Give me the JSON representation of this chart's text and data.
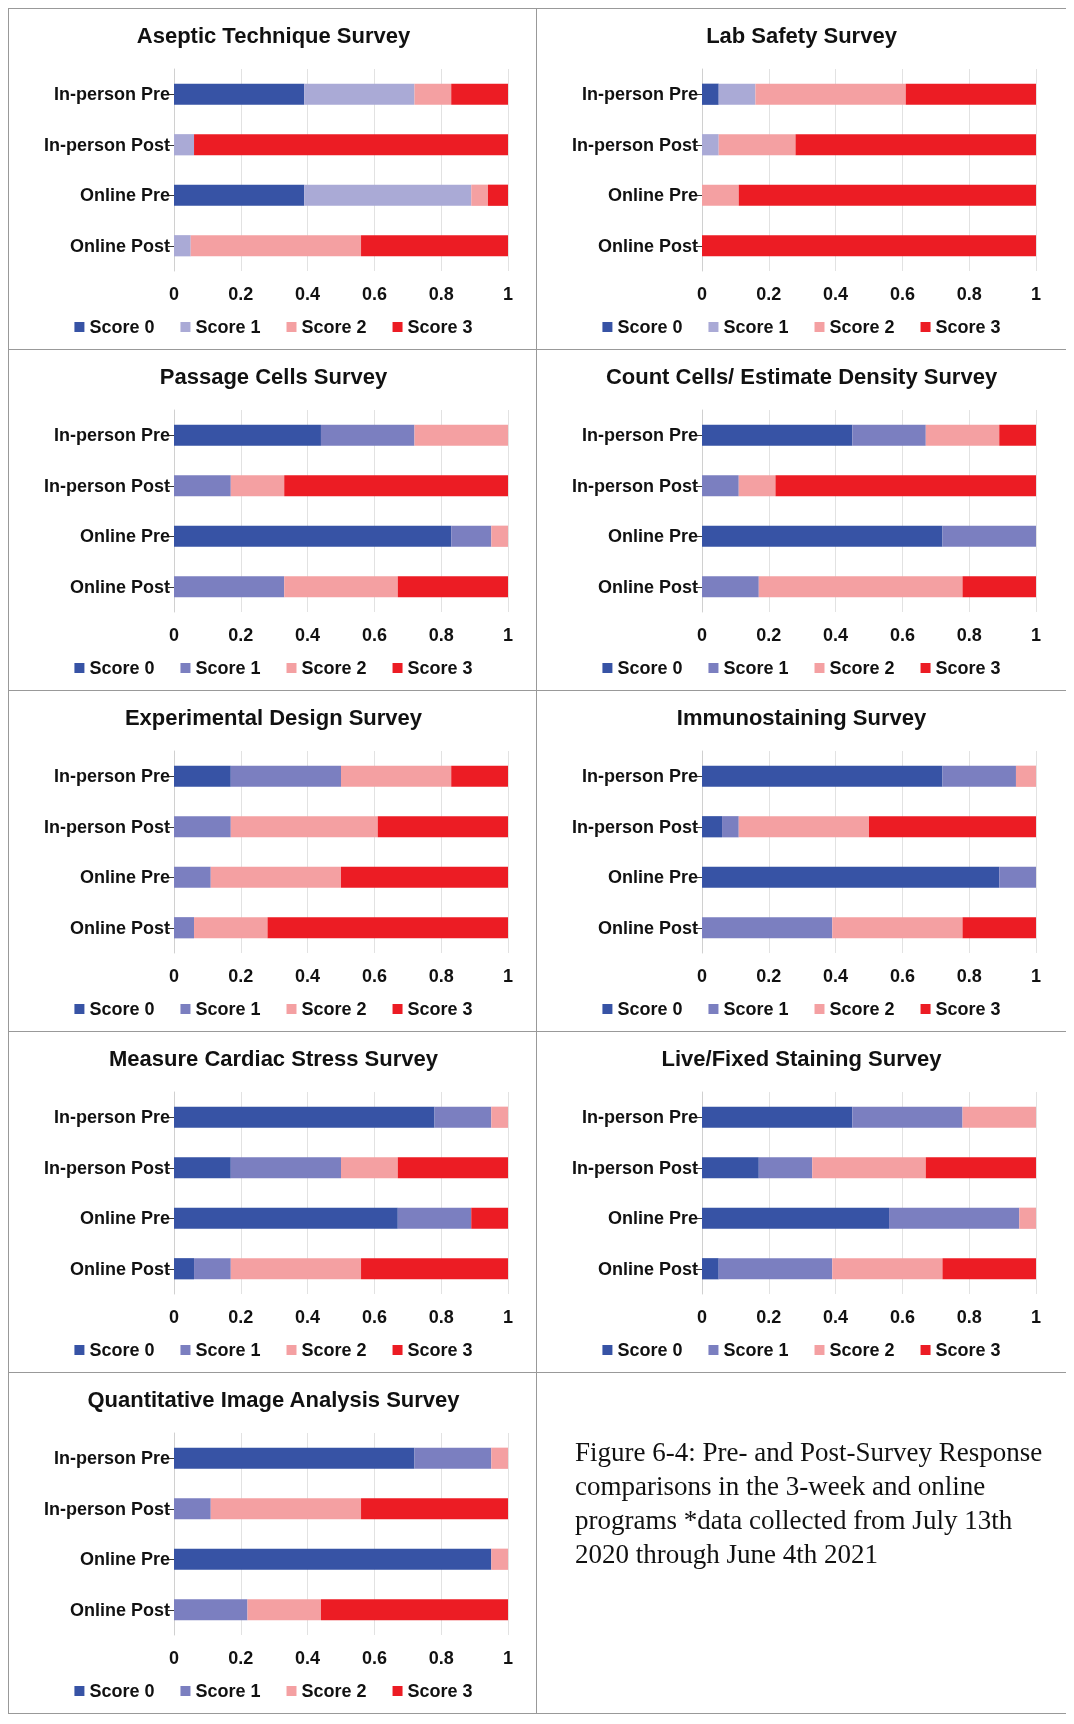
{
  "chart_data": [
    {
      "type": "bar",
      "title": "Aseptic Technique Survey",
      "orientation": "horizontal",
      "stacked": true,
      "categories": [
        "In-person Pre",
        "In-person Post",
        "Online Pre",
        "Online Post"
      ],
      "xlim": [
        0,
        1
      ],
      "xticks": [
        0,
        0.2,
        0.4,
        0.6,
        0.8,
        1
      ],
      "grid": "x",
      "legend": "bottom",
      "series": [
        {
          "name": "Score 0",
          "color": "#3753a5",
          "values": [
            0.39,
            0,
            0.39,
            0
          ]
        },
        {
          "name": "Score 1",
          "color": "#aaaad6",
          "values": [
            0.33,
            0.06,
            0.5,
            0.05
          ]
        },
        {
          "name": "Score 2",
          "color": "#f4a0a2",
          "values": [
            0.11,
            0,
            0.05,
            0.51
          ]
        },
        {
          "name": "Score 3",
          "color": "#ec1c24",
          "values": [
            0.17,
            0.94,
            0.06,
            0.44
          ]
        }
      ]
    },
    {
      "type": "bar",
      "title": "Lab Safety Survey",
      "orientation": "horizontal",
      "stacked": true,
      "categories": [
        "In-person Pre",
        "In-person Post",
        "Online Pre",
        "Online Post"
      ],
      "xlim": [
        0,
        1
      ],
      "xticks": [
        0,
        0.2,
        0.4,
        0.6,
        0.8,
        1
      ],
      "grid": "x",
      "legend": "bottom",
      "series": [
        {
          "name": "Score 0",
          "color": "#3753a5",
          "values": [
            0.05,
            0,
            0,
            0
          ]
        },
        {
          "name": "Score 1",
          "color": "#aaaad6",
          "values": [
            0.11,
            0.05,
            0,
            0
          ]
        },
        {
          "name": "Score 2",
          "color": "#f4a0a2",
          "values": [
            0.45,
            0.23,
            0.11,
            0
          ]
        },
        {
          "name": "Score 3",
          "color": "#ec1c24",
          "values": [
            0.39,
            0.72,
            0.89,
            1
          ]
        }
      ]
    },
    {
      "type": "bar",
      "title": "Passage Cells Survey",
      "orientation": "horizontal",
      "stacked": true,
      "categories": [
        "In-person Pre",
        "In-person Post",
        "Online Pre",
        "Online Post"
      ],
      "xlim": [
        0,
        1
      ],
      "xticks": [
        0,
        0.2,
        0.4,
        0.6,
        0.8,
        1
      ],
      "grid": "x",
      "legend": "bottom",
      "series": [
        {
          "name": "Score 0",
          "color": "#3753a5",
          "values": [
            0.44,
            0,
            0.83,
            0
          ]
        },
        {
          "name": "Score 1",
          "color": "#7b7fc0",
          "values": [
            0.28,
            0.17,
            0.12,
            0.33
          ]
        },
        {
          "name": "Score 2",
          "color": "#f4a0a2",
          "values": [
            0.28,
            0.16,
            0.05,
            0.34
          ]
        },
        {
          "name": "Score 3",
          "color": "#ec1c24",
          "values": [
            0,
            0.67,
            0,
            0.33
          ]
        }
      ]
    },
    {
      "type": "bar",
      "title": "Count Cells/ Estimate Density Survey",
      "orientation": "horizontal",
      "stacked": true,
      "categories": [
        "In-person Pre",
        "In-person Post",
        "Online Pre",
        "Online Post"
      ],
      "xlim": [
        0,
        1
      ],
      "xticks": [
        0,
        0.2,
        0.4,
        0.6,
        0.8,
        1
      ],
      "grid": "x",
      "legend": "bottom",
      "series": [
        {
          "name": "Score 0",
          "color": "#3753a5",
          "values": [
            0.45,
            0,
            0.72,
            0
          ]
        },
        {
          "name": "Score 1",
          "color": "#7b7fc0",
          "values": [
            0.22,
            0.11,
            0.28,
            0.17
          ]
        },
        {
          "name": "Score 2",
          "color": "#f4a0a2",
          "values": [
            0.22,
            0.11,
            0,
            0.61
          ]
        },
        {
          "name": "Score 3",
          "color": "#ec1c24",
          "values": [
            0.11,
            0.78,
            0,
            0.22
          ]
        }
      ]
    },
    {
      "type": "bar",
      "title": "Experimental Design Survey",
      "orientation": "horizontal",
      "stacked": true,
      "categories": [
        "In-person Pre",
        "In-person Post",
        "Online Pre",
        "Online Post"
      ],
      "xlim": [
        0,
        1
      ],
      "xticks": [
        0,
        0.2,
        0.4,
        0.6,
        0.8,
        1
      ],
      "grid": "x",
      "legend": "bottom",
      "series": [
        {
          "name": "Score 0",
          "color": "#3753a5",
          "values": [
            0.17,
            0,
            0,
            0
          ]
        },
        {
          "name": "Score 1",
          "color": "#7b7fc0",
          "values": [
            0.33,
            0.17,
            0.11,
            0.06
          ]
        },
        {
          "name": "Score 2",
          "color": "#f4a0a2",
          "values": [
            0.33,
            0.44,
            0.39,
            0.22
          ]
        },
        {
          "name": "Score 3",
          "color": "#ec1c24",
          "values": [
            0.17,
            0.39,
            0.5,
            0.72
          ]
        }
      ]
    },
    {
      "type": "bar",
      "title": "Immunostaining Survey",
      "orientation": "horizontal",
      "stacked": true,
      "categories": [
        "In-person Pre",
        "In-person Post",
        "Online Pre",
        "Online Post"
      ],
      "xlim": [
        0,
        1
      ],
      "xticks": [
        0,
        0.2,
        0.4,
        0.6,
        0.8,
        1
      ],
      "grid": "x",
      "legend": "bottom",
      "series": [
        {
          "name": "Score 0",
          "color": "#3753a5",
          "values": [
            0.72,
            0.06,
            0.89,
            0
          ]
        },
        {
          "name": "Score 1",
          "color": "#7b7fc0",
          "values": [
            0.22,
            0.05,
            0.11,
            0.39
          ]
        },
        {
          "name": "Score 2",
          "color": "#f4a0a2",
          "values": [
            0.06,
            0.39,
            0,
            0.39
          ]
        },
        {
          "name": "Score 3",
          "color": "#ec1c24",
          "values": [
            0,
            0.5,
            0,
            0.22
          ]
        }
      ]
    },
    {
      "type": "bar",
      "title": "Measure Cardiac Stress Survey",
      "orientation": "horizontal",
      "stacked": true,
      "categories": [
        "In-person Pre",
        "In-person Post",
        "Online Pre",
        "Online Post"
      ],
      "xlim": [
        0,
        1
      ],
      "xticks": [
        0,
        0.2,
        0.4,
        0.6,
        0.8,
        1
      ],
      "grid": "x",
      "legend": "bottom",
      "series": [
        {
          "name": "Score 0",
          "color": "#3753a5",
          "values": [
            0.78,
            0.17,
            0.67,
            0.06
          ]
        },
        {
          "name": "Score 1",
          "color": "#7b7fc0",
          "values": [
            0.17,
            0.33,
            0.22,
            0.11
          ]
        },
        {
          "name": "Score 2",
          "color": "#f4a0a2",
          "values": [
            0.05,
            0.17,
            0,
            0.39
          ]
        },
        {
          "name": "Score 3",
          "color": "#ec1c24",
          "values": [
            0,
            0.33,
            0.11,
            0.44
          ]
        }
      ]
    },
    {
      "type": "bar",
      "title": "Live/Fixed Staining Survey",
      "orientation": "horizontal",
      "stacked": true,
      "categories": [
        "In-person Pre",
        "In-person Post",
        "Online Pre",
        "Online Post"
      ],
      "xlim": [
        0,
        1
      ],
      "xticks": [
        0,
        0.2,
        0.4,
        0.6,
        0.8,
        1
      ],
      "grid": "x",
      "legend": "bottom",
      "series": [
        {
          "name": "Score 0",
          "color": "#3753a5",
          "values": [
            0.45,
            0.17,
            0.56,
            0.05
          ]
        },
        {
          "name": "Score 1",
          "color": "#7b7fc0",
          "values": [
            0.33,
            0.16,
            0.39,
            0.34
          ]
        },
        {
          "name": "Score 2",
          "color": "#f4a0a2",
          "values": [
            0.22,
            0.34,
            0.05,
            0.33
          ]
        },
        {
          "name": "Score 3",
          "color": "#ec1c24",
          "values": [
            0,
            0.33,
            0,
            0.28
          ]
        }
      ]
    },
    {
      "type": "bar",
      "title": "Quantitative Image Analysis Survey",
      "orientation": "horizontal",
      "stacked": true,
      "categories": [
        "In-person Pre",
        "In-person Post",
        "Online Pre",
        "Online Post"
      ],
      "xlim": [
        0,
        1
      ],
      "xticks": [
        0,
        0.2,
        0.4,
        0.6,
        0.8,
        1
      ],
      "grid": "x",
      "legend": "bottom",
      "series": [
        {
          "name": "Score 0",
          "color": "#3753a5",
          "values": [
            0.72,
            0,
            0.95,
            0
          ]
        },
        {
          "name": "Score 1",
          "color": "#7b7fc0",
          "values": [
            0.23,
            0.11,
            0,
            0.22
          ]
        },
        {
          "name": "Score 2",
          "color": "#f4a0a2",
          "values": [
            0.05,
            0.45,
            0.05,
            0.22
          ]
        },
        {
          "name": "Score 3",
          "color": "#ec1c24",
          "values": [
            0,
            0.44,
            0,
            0.56
          ]
        }
      ]
    },
    {
      "type": "other",
      "annotations": [
        "Figure 6-4: Pre- and Post-Survey Response comparisons in the 3-week and online programs *data collected from July 13th 2020 through June 4th 2021"
      ]
    }
  ]
}
